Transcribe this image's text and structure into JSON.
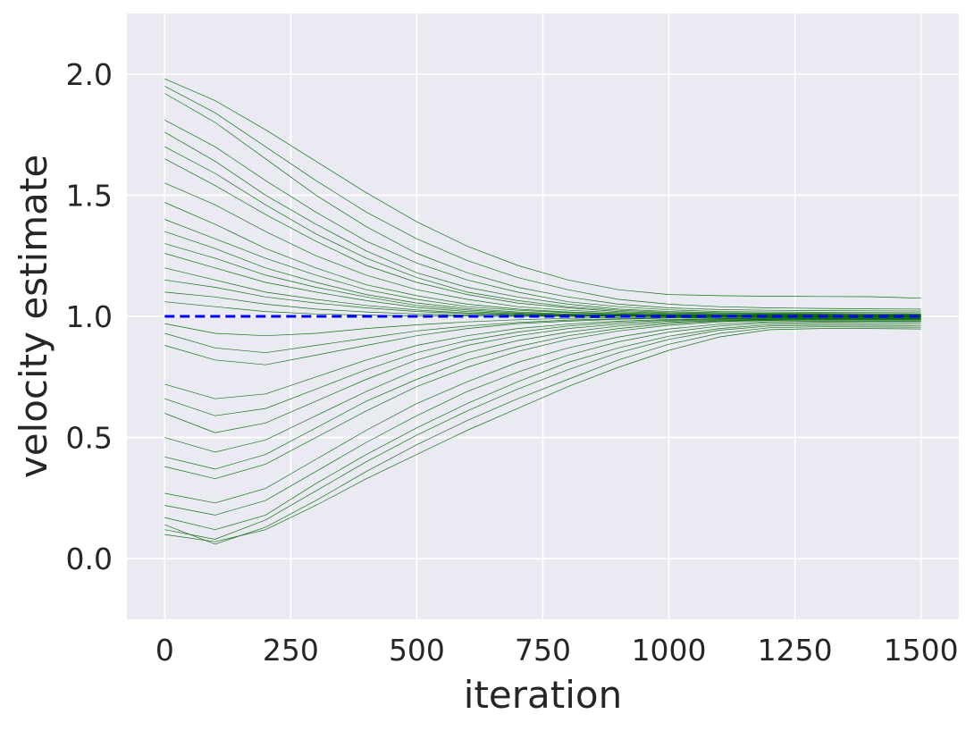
{
  "chart_data": {
    "type": "line",
    "title": "",
    "xlabel": "iteration",
    "ylabel": "velocity estimate",
    "xlim": [
      -75,
      1575
    ],
    "ylim": [
      -0.25,
      2.25
    ],
    "x_ticks": [
      0,
      250,
      500,
      750,
      1000,
      1250,
      1500
    ],
    "x_tick_labels": [
      "0",
      "250",
      "500",
      "750",
      "1000",
      "1250",
      "1500"
    ],
    "y_ticks": [
      0.0,
      0.5,
      1.0,
      1.5,
      2.0
    ],
    "y_tick_labels": [
      "0.0",
      "0.5",
      "1.0",
      "1.5",
      "2.0"
    ],
    "grid": true,
    "background_color": "#eaeaf2",
    "grid_color": "#ffffff",
    "reference_line": {
      "style": "dashed",
      "color": "#0000ff",
      "y": 1.0,
      "x": [
        0,
        1500
      ]
    },
    "trace_color": "#006400",
    "trace_x": [
      0,
      100,
      200,
      300,
      400,
      500,
      600,
      700,
      800,
      900,
      1000,
      1100,
      1200,
      1300,
      1400,
      1500
    ],
    "series": [
      {
        "values": [
          1.98,
          1.89,
          1.77,
          1.64,
          1.51,
          1.39,
          1.29,
          1.21,
          1.15,
          1.11,
          1.09,
          1.085,
          1.083,
          1.082,
          1.081,
          1.075
        ]
      },
      {
        "values": [
          1.95,
          1.84,
          1.7,
          1.56,
          1.43,
          1.32,
          1.23,
          1.16,
          1.11,
          1.07,
          1.05,
          1.04,
          1.035,
          1.033,
          1.031,
          1.03
        ]
      },
      {
        "values": [
          1.92,
          1.8,
          1.65,
          1.5,
          1.37,
          1.26,
          1.18,
          1.12,
          1.08,
          1.05,
          1.035,
          1.028,
          1.025,
          1.024,
          1.023,
          1.022
        ]
      },
      {
        "values": [
          1.81,
          1.7,
          1.56,
          1.43,
          1.31,
          1.22,
          1.15,
          1.1,
          1.06,
          1.04,
          1.027,
          1.02,
          1.018,
          1.017,
          1.016,
          1.015
        ]
      },
      {
        "values": [
          1.76,
          1.64,
          1.5,
          1.38,
          1.27,
          1.18,
          1.12,
          1.08,
          1.05,
          1.03,
          1.02,
          1.015,
          1.013,
          1.012,
          1.011,
          1.01
        ]
      },
      {
        "values": [
          1.7,
          1.59,
          1.46,
          1.34,
          1.24,
          1.16,
          1.1,
          1.065,
          1.04,
          1.025,
          1.016,
          1.012,
          1.01,
          1.01,
          1.01,
          1.01
        ]
      },
      {
        "values": [
          1.65,
          1.54,
          1.42,
          1.31,
          1.21,
          1.14,
          1.09,
          1.055,
          1.035,
          1.02,
          1.013,
          1.01,
          1.008,
          1.008,
          1.007,
          1.007
        ]
      },
      {
        "values": [
          1.55,
          1.46,
          1.35,
          1.25,
          1.17,
          1.11,
          1.07,
          1.04,
          1.025,
          1.015,
          1.01,
          1.007,
          1.006,
          1.006,
          1.005,
          1.005
        ]
      },
      {
        "values": [
          1.47,
          1.38,
          1.28,
          1.2,
          1.13,
          1.085,
          1.05,
          1.03,
          1.018,
          1.011,
          1.007,
          1.005,
          1.004,
          1.004,
          1.004,
          1.004
        ]
      },
      {
        "values": [
          1.4,
          1.32,
          1.24,
          1.17,
          1.11,
          1.07,
          1.04,
          1.025,
          1.015,
          1.009,
          1.006,
          1.004,
          1.003,
          1.003,
          1.003,
          1.003
        ]
      },
      {
        "values": [
          1.35,
          1.28,
          1.2,
          1.14,
          1.09,
          1.055,
          1.032,
          1.018,
          1.01,
          1.006,
          1.004,
          1.003,
          1.002,
          1.002,
          1.002,
          1.002
        ]
      },
      {
        "values": [
          1.3,
          1.24,
          1.17,
          1.12,
          1.08,
          1.045,
          1.026,
          1.014,
          1.008,
          1.005,
          1.003,
          1.002,
          1.002,
          1.002,
          1.002,
          1.002
        ]
      },
      {
        "values": [
          1.26,
          1.2,
          1.14,
          1.1,
          1.065,
          1.037,
          1.02,
          1.011,
          1.006,
          1.004,
          1.002,
          1.002,
          1.001,
          1.001,
          1.001,
          1.001
        ]
      },
      {
        "values": [
          1.2,
          1.15,
          1.1,
          1.07,
          1.045,
          1.026,
          1.014,
          1.008,
          1.004,
          1.002,
          1.001,
          1.001,
          1.001,
          1.001,
          1.001,
          1.001
        ]
      },
      {
        "values": [
          1.15,
          1.12,
          1.08,
          1.055,
          1.035,
          1.02,
          1.011,
          1.006,
          1.003,
          1.002,
          1.001,
          1.001,
          1.0,
          1.0,
          1.0,
          1.0
        ]
      },
      {
        "values": [
          1.1,
          1.08,
          1.05,
          1.03,
          1.018,
          1.01,
          1.005,
          1.003,
          1.002,
          1.001,
          1.0,
          1.0,
          1.0,
          1.0,
          1.0,
          1.0
        ]
      },
      {
        "values": [
          1.06,
          1.04,
          1.02,
          1.01,
          1.005,
          1.002,
          1.001,
          1.0,
          1.0,
          1.0,
          1.0,
          1.0,
          1.0,
          1.0,
          1.0,
          1.0
        ]
      },
      {
        "values": [
          0.97,
          0.93,
          0.92,
          0.93,
          0.95,
          0.965,
          0.977,
          0.986,
          0.992,
          0.995,
          0.997,
          0.998,
          0.999,
          0.999,
          0.999,
          0.999
        ]
      },
      {
        "values": [
          0.93,
          0.87,
          0.85,
          0.88,
          0.91,
          0.94,
          0.96,
          0.975,
          0.985,
          0.99,
          0.994,
          0.996,
          0.997,
          0.997,
          0.997,
          0.997
        ]
      },
      {
        "values": [
          0.88,
          0.82,
          0.8,
          0.84,
          0.88,
          0.92,
          0.95,
          0.97,
          0.98,
          0.988,
          0.993,
          0.995,
          0.996,
          0.996,
          0.996,
          0.996
        ]
      },
      {
        "values": [
          0.72,
          0.66,
          0.68,
          0.75,
          0.82,
          0.88,
          0.92,
          0.95,
          0.968,
          0.98,
          0.987,
          0.991,
          0.993,
          0.993,
          0.993,
          0.993
        ]
      },
      {
        "values": [
          0.66,
          0.59,
          0.62,
          0.7,
          0.78,
          0.85,
          0.9,
          0.935,
          0.96,
          0.975,
          0.984,
          0.989,
          0.991,
          0.992,
          0.992,
          0.992
        ]
      },
      {
        "values": [
          0.6,
          0.52,
          0.56,
          0.65,
          0.74,
          0.82,
          0.88,
          0.92,
          0.95,
          0.968,
          0.98,
          0.986,
          0.989,
          0.99,
          0.99,
          0.99
        ]
      },
      {
        "values": [
          0.5,
          0.44,
          0.49,
          0.59,
          0.69,
          0.78,
          0.85,
          0.9,
          0.935,
          0.96,
          0.975,
          0.983,
          0.987,
          0.988,
          0.988,
          0.988
        ]
      },
      {
        "values": [
          0.42,
          0.37,
          0.43,
          0.54,
          0.65,
          0.74,
          0.82,
          0.875,
          0.92,
          0.95,
          0.97,
          0.98,
          0.985,
          0.986,
          0.986,
          0.986
        ]
      },
      {
        "values": [
          0.38,
          0.33,
          0.39,
          0.5,
          0.61,
          0.71,
          0.79,
          0.855,
          0.905,
          0.94,
          0.963,
          0.977,
          0.983,
          0.984,
          0.984,
          0.984
        ]
      },
      {
        "values": [
          0.27,
          0.23,
          0.29,
          0.41,
          0.53,
          0.64,
          0.73,
          0.81,
          0.87,
          0.915,
          0.948,
          0.968,
          0.978,
          0.98,
          0.98,
          0.98
        ]
      },
      {
        "values": [
          0.22,
          0.18,
          0.24,
          0.36,
          0.48,
          0.59,
          0.69,
          0.77,
          0.84,
          0.895,
          0.935,
          0.96,
          0.973,
          0.976,
          0.977,
          0.977
        ]
      },
      {
        "values": [
          0.17,
          0.12,
          0.18,
          0.31,
          0.43,
          0.54,
          0.64,
          0.73,
          0.81,
          0.87,
          0.918,
          0.95,
          0.966,
          0.97,
          0.97,
          0.97
        ]
      },
      {
        "values": [
          0.12,
          0.08,
          0.16,
          0.28,
          0.4,
          0.51,
          0.61,
          0.7,
          0.78,
          0.85,
          0.905,
          0.943,
          0.96,
          0.963,
          0.963,
          0.962
        ]
      },
      {
        "values": [
          0.14,
          0.06,
          0.13,
          0.24,
          0.36,
          0.47,
          0.57,
          0.66,
          0.74,
          0.82,
          0.885,
          0.93,
          0.953,
          0.957,
          0.956,
          0.955
        ]
      },
      {
        "values": [
          0.1,
          0.07,
          0.12,
          0.22,
          0.33,
          0.43,
          0.53,
          0.62,
          0.71,
          0.79,
          0.86,
          0.915,
          0.945,
          0.95,
          0.95,
          0.948
        ]
      }
    ]
  }
}
